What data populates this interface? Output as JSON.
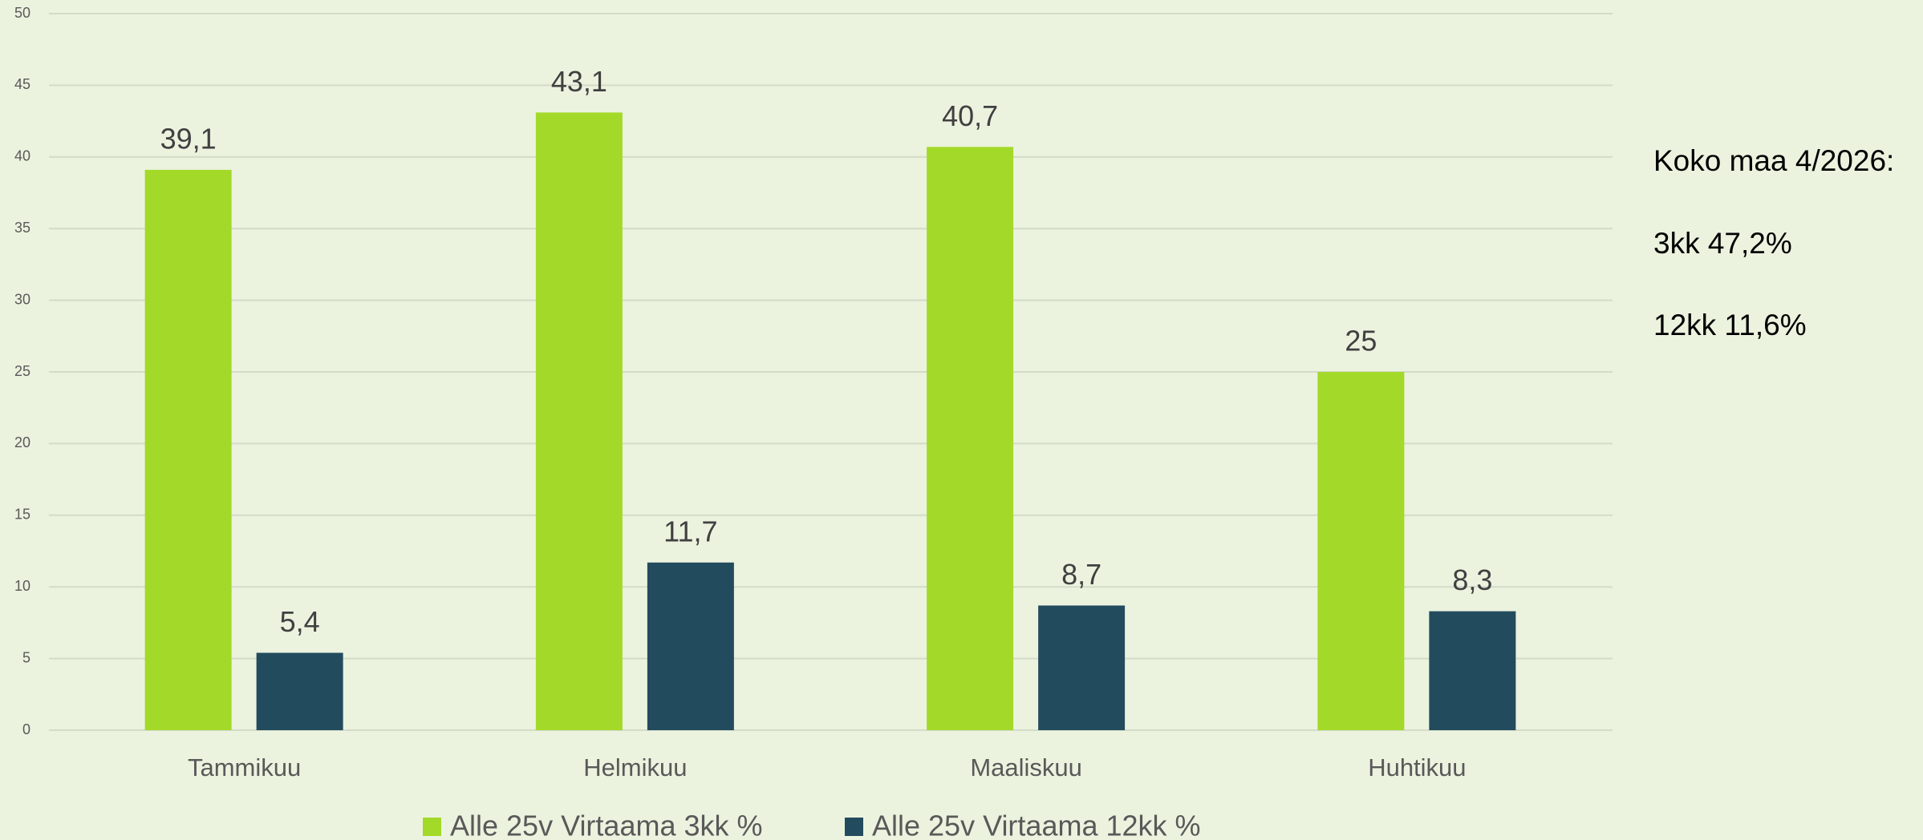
{
  "chart_data": {
    "type": "bar",
    "categories": [
      "Tammikuu",
      "Helmikuu",
      "Maaliskuu",
      "Huhtikuu"
    ],
    "series": [
      {
        "name": "Alle 25v Virtaama 3kk %",
        "color": "#a3d928",
        "values": [
          39.1,
          43.1,
          40.7,
          25
        ],
        "value_labels": [
          "39,1",
          "43,1",
          "40,7",
          "25"
        ]
      },
      {
        "name": "Alle 25v Virtaama 12kk %",
        "color": "#234b5e",
        "values": [
          5.4,
          11.7,
          8.7,
          8.3
        ],
        "value_labels": [
          "5,4",
          "11,7",
          "8,7",
          "8,3"
        ]
      }
    ],
    "ylim": [
      0,
      50
    ],
    "yticks": [
      0,
      5,
      10,
      15,
      20,
      25,
      30,
      35,
      40,
      45,
      50
    ],
    "grid": true,
    "legend": "bottom",
    "annotations": [
      "Koko maa 4/2026:",
      "3kk 47,2%",
      "12kk 11,6%"
    ]
  }
}
